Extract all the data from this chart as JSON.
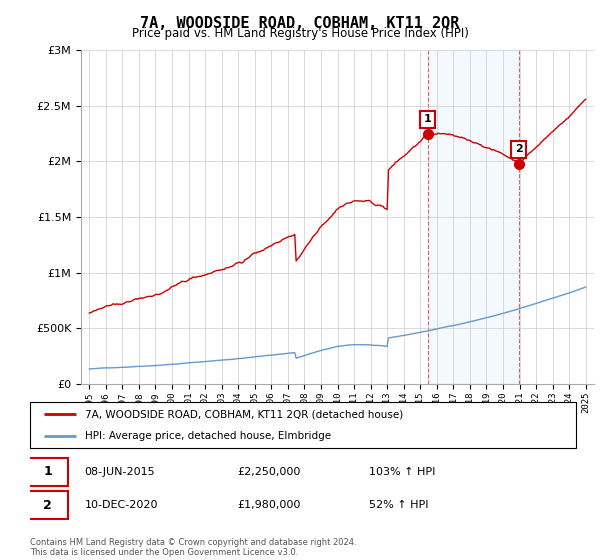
{
  "title": "7A, WOODSIDE ROAD, COBHAM, KT11 2QR",
  "subtitle": "Price paid vs. HM Land Registry's House Price Index (HPI)",
  "legend_line1": "7A, WOODSIDE ROAD, COBHAM, KT11 2QR (detached house)",
  "legend_line2": "HPI: Average price, detached house, Elmbridge",
  "transaction1_date": "08-JUN-2015",
  "transaction1_price": "£2,250,000",
  "transaction1_hpi": "103% ↑ HPI",
  "transaction2_date": "10-DEC-2020",
  "transaction2_price": "£1,980,000",
  "transaction2_hpi": "52% ↑ HPI",
  "footnote": "Contains HM Land Registry data © Crown copyright and database right 2024.\nThis data is licensed under the Open Government Licence v3.0.",
  "red_color": "#cc0000",
  "blue_color": "#6699cc",
  "bg_shading_color": "#ddeeff",
  "ylim": [
    0,
    3000000
  ],
  "xlim_start": 1994.5,
  "xlim_end": 2025.5,
  "transaction1_x": 2015.44,
  "transaction1_y": 2250000,
  "transaction2_x": 2020.94,
  "transaction2_y": 1980000
}
